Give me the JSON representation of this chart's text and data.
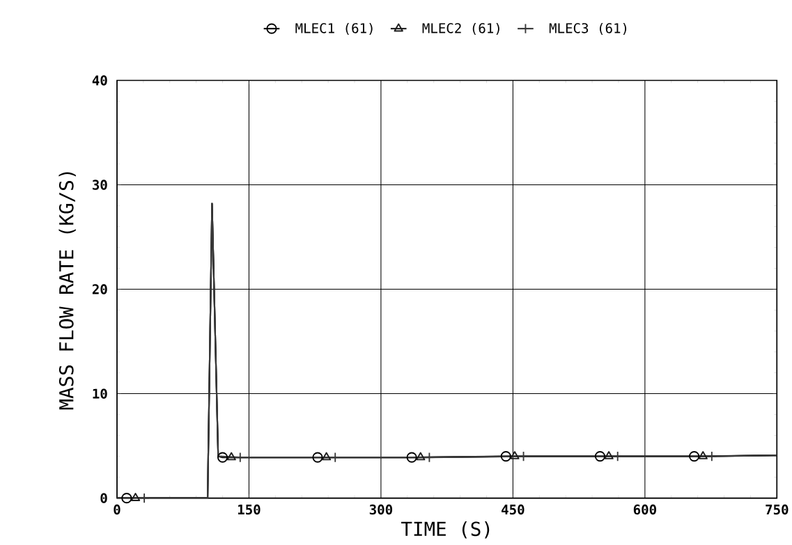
{
  "chart_data": {
    "type": "line",
    "xlabel": "TIME (S)",
    "ylabel": "MASS FLOW RATE (KG/S)",
    "xlim": [
      0,
      750
    ],
    "ylim": [
      0,
      40
    ],
    "xticks": [
      0,
      150,
      300,
      450,
      600,
      750
    ],
    "yticks": [
      0,
      10,
      20,
      30,
      40
    ],
    "grid": true,
    "legend": "top",
    "line_style": "solid",
    "series": [
      {
        "name": "MLEC1 (61)",
        "color": "#000000",
        "marker": "circle",
        "x": [
          0,
          11,
          103,
          108,
          115,
          120,
          228,
          335,
          442,
          549,
          656,
          750
        ],
        "values": [
          0,
          0,
          0,
          28.2,
          4,
          3.9,
          3.9,
          3.9,
          4,
          4,
          4,
          4.1
        ]
      },
      {
        "name": "MLEC2 (61)",
        "color": "#1c1c1c",
        "marker": "triangle",
        "x": [
          0,
          21,
          103,
          108,
          115,
          130,
          238,
          345,
          452,
          559,
          666,
          750
        ],
        "values": [
          0,
          0,
          0,
          28.2,
          4,
          3.9,
          3.9,
          3.9,
          4,
          4,
          4,
          4.1
        ]
      },
      {
        "name": "MLEC3 (61)",
        "color": "#383838",
        "marker": "cross",
        "x": [
          0,
          31,
          103,
          108,
          115,
          140,
          248,
          355,
          462,
          569,
          676,
          750
        ],
        "values": [
          0,
          0,
          0,
          28.2,
          4,
          3.9,
          3.9,
          3.9,
          4,
          4,
          4,
          4.1
        ]
      }
    ]
  }
}
